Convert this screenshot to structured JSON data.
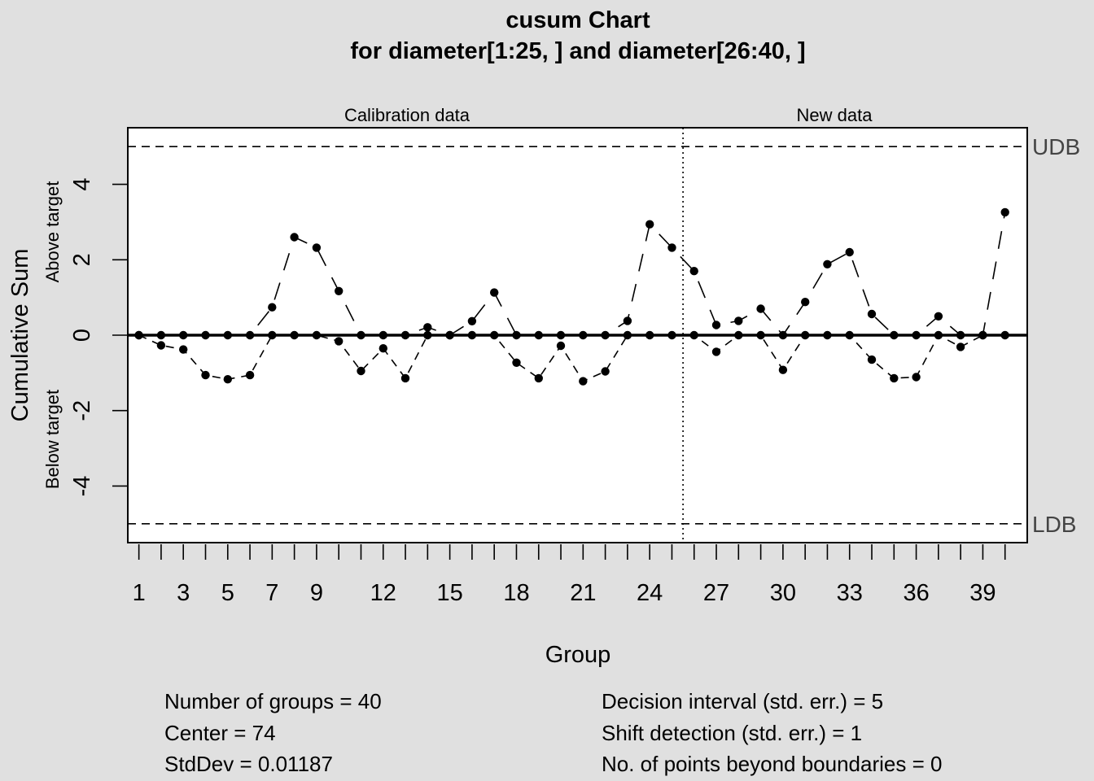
{
  "chart_data": {
    "type": "line",
    "title": "cusum Chart",
    "subtitle": "for diameter[1:25, ] and diameter[26:40, ]",
    "xlabel": "Group",
    "ylabel": "Cumulative Sum",
    "ylabel_above": "Above target",
    "ylabel_below": "Below target",
    "section_labels": [
      "Calibration data",
      "New data"
    ],
    "calibration_end": 25,
    "xlim": [
      0.5,
      41
    ],
    "ylim": [
      -5.5,
      5.5
    ],
    "x_tick_labels": [
      1,
      3,
      5,
      7,
      9,
      12,
      15,
      18,
      21,
      24,
      27,
      30,
      33,
      36,
      39
    ],
    "y_ticks": [
      -4,
      -2,
      0,
      2,
      4
    ],
    "boundaries": [
      {
        "name": "UDB",
        "value": 5
      },
      {
        "name": "LDB",
        "value": -5
      }
    ],
    "center_line": 0,
    "x": [
      1,
      2,
      3,
      4,
      5,
      6,
      7,
      8,
      9,
      10,
      11,
      12,
      13,
      14,
      15,
      16,
      17,
      18,
      19,
      20,
      21,
      22,
      23,
      24,
      25,
      26,
      27,
      28,
      29,
      30,
      31,
      32,
      33,
      34,
      35,
      36,
      37,
      38,
      39,
      40
    ],
    "series": [
      {
        "values": [
          0,
          0,
          0,
          0,
          0,
          0,
          0.74,
          2.6,
          2.32,
          1.17,
          0,
          0,
          0,
          0.21,
          0,
          0.37,
          1.13,
          0,
          0,
          0,
          0,
          0,
          0.38,
          2.94,
          2.32,
          1.7,
          0.27,
          0.38,
          0.7,
          0,
          0.88,
          1.88,
          2.2,
          0.56,
          0,
          0,
          0.5,
          0,
          0,
          3.26
        ]
      },
      {
        "values": [
          0,
          -0.27,
          -0.38,
          -1.06,
          -1.17,
          -1.06,
          0,
          0,
          0,
          -0.16,
          -0.95,
          -0.35,
          -1.14,
          0,
          0,
          0,
          0,
          -0.73,
          -1.14,
          -0.28,
          -1.22,
          -0.96,
          0,
          0,
          0,
          0,
          -0.44,
          0,
          0,
          -0.92,
          0,
          0,
          0,
          -0.65,
          -1.14,
          -1.11,
          0,
          -0.31,
          0,
          0
        ]
      }
    ]
  },
  "stats": {
    "left": [
      "Number of groups = 40",
      "Center = 74",
      "StdDev = 0.01187"
    ],
    "right": [
      "Decision interval (std. err.) = 5",
      "Shift detection (std. err.) = 1",
      "No. of points beyond boundaries = 0"
    ]
  },
  "colors": {
    "background": "#e0e0e0",
    "plot": "#ffffff",
    "ink": "#000000",
    "boundary_label": "#444444"
  }
}
